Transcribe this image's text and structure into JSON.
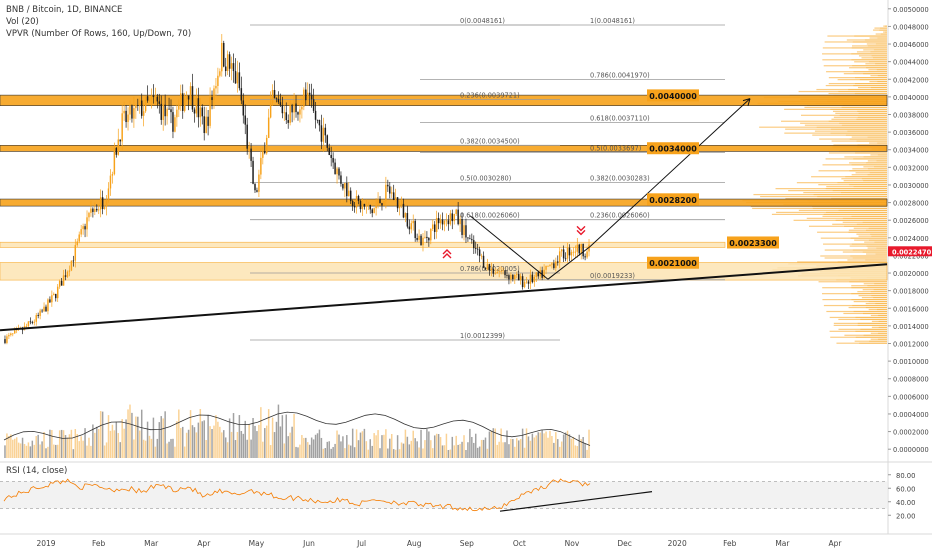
{
  "header": {
    "symbol_line": "BNB / Bitcoin, 1D, BINANCE",
    "vol_line": "Vol (20)",
    "vpvr_line": "VPVR (Number Of Rows, 160, Up/Down, 70)",
    "rsi_line": "RSI (14, close)"
  },
  "colors": {
    "up": "#f7a21b",
    "down": "#1e1e1e",
    "zone": "#f7a21b",
    "zone_light": "#fde4b3",
    "price_tag": "#e8192c",
    "rsi_line": "#f57c00"
  },
  "chart_data": {
    "type": "candlestick",
    "price_axis": {
      "ylim": [
        -0.0001,
        0.0051
      ],
      "ticks": [
        "0.0050000",
        "0.0048000",
        "0.0046000",
        "0.0044000",
        "0.0042000",
        "0.0040000",
        "0.0038000",
        "0.0036000",
        "0.0034000",
        "0.0032000",
        "0.0030000",
        "0.0028000",
        "0.0026000",
        "0.0024000",
        "0.0022000",
        "0.0020000",
        "0.0018000",
        "0.0016000",
        "0.0014000",
        "0.0012000",
        "0.0010000",
        "0.0008000",
        "0.0006000",
        "0.0004000",
        "0.0002000",
        "0.0000000"
      ],
      "current_price": "0.0022470"
    },
    "rsi_axis": {
      "ylim": [
        10,
        90
      ],
      "ticks": [
        "80.00",
        "60.00",
        "40.00",
        "20.00"
      ],
      "band": [
        30,
        70
      ]
    },
    "time_axis": {
      "labels": [
        "2019",
        "Feb",
        "Mar",
        "Apr",
        "May",
        "Jun",
        "Jul",
        "Aug",
        "Sep",
        "Oct",
        "Nov",
        "Dec",
        "2020",
        "Feb",
        "Mar",
        "Apr"
      ]
    },
    "close_path": [
      [
        "2019",
        0.00125
      ],
      [
        "Jan",
        0.00135
      ],
      [
        "Jan",
        0.0015
      ],
      [
        "Feb",
        0.00175
      ],
      [
        "Feb",
        0.00215
      ],
      [
        "Feb",
        0.00265
      ],
      [
        "Feb",
        0.00285
      ],
      [
        "Mar",
        0.0037
      ],
      [
        "Mar",
        0.00385
      ],
      [
        "Mar",
        0.00395
      ],
      [
        "Apr",
        0.0037
      ],
      [
        "Apr",
        0.0041
      ],
      [
        "Apr",
        0.00365
      ],
      [
        "May",
        0.0045
      ],
      [
        "May",
        0.00415
      ],
      [
        "May",
        0.00285
      ],
      [
        "May",
        0.00395
      ],
      [
        "Jun",
        0.0038
      ],
      [
        "Jun",
        0.004
      ],
      [
        "Jun",
        0.0036
      ],
      [
        "Jul",
        0.0031
      ],
      [
        "Jul",
        0.0028
      ],
      [
        "Jul",
        0.0027
      ],
      [
        "Jul",
        0.00295
      ],
      [
        "Aug",
        0.00265
      ],
      [
        "Aug",
        0.00235
      ],
      [
        "Aug",
        0.0026
      ],
      [
        "Aug",
        0.00265
      ],
      [
        "Sep",
        0.0023
      ],
      [
        "Sep",
        0.00205
      ],
      [
        "Sep",
        0.002
      ],
      [
        "Sep",
        0.0019
      ],
      [
        "Oct",
        0.00195
      ],
      [
        "Oct",
        0.00215
      ],
      [
        "Oct",
        0.00228
      ],
      [
        "Oct",
        0.00225
      ]
    ],
    "fib_left": {
      "levels": [
        {
          "label": "0(0.0048161)",
          "value": 0.0048161
        },
        {
          "label": "0.236(0.0039721)",
          "value": 0.0039721
        },
        {
          "label": "0.382(0.0034500)",
          "value": 0.00345
        },
        {
          "label": "0.5(0.0030280)",
          "value": 0.003028
        },
        {
          "label": "0.618(0.0026060)",
          "value": 0.002606
        },
        {
          "label": "0.786(0.0020005)",
          "value": 0.0020005
        },
        {
          "label": "1(0.0012399)",
          "value": 0.0012399
        }
      ]
    },
    "fib_right": {
      "levels": [
        {
          "label": "1(0.0048161)",
          "value": 0.0048161
        },
        {
          "label": "0.786(0.0041970)",
          "value": 0.004197
        },
        {
          "label": "0.618(0.0037110)",
          "value": 0.003711
        },
        {
          "label": "0.5(0.0033697)",
          "value": 0.0033697
        },
        {
          "label": "0.382(0.0030283)",
          "value": 0.0030283
        },
        {
          "label": "0.236(0.0026060)",
          "value": 0.002606
        },
        {
          "label": "0(0.0019233)",
          "value": 0.0019233
        }
      ]
    },
    "zones": [
      {
        "low": 0.0039,
        "high": 0.00402
      },
      {
        "low": 0.00338,
        "high": 0.00345
      },
      {
        "low": 0.00276,
        "high": 0.00284
      },
      {
        "low": 0.00192,
        "high": 0.00212,
        "light": true
      },
      {
        "low": 0.00229,
        "high": 0.00235,
        "light": true
      }
    ],
    "levels": [
      {
        "label": "0.0040000",
        "value": 0.004
      },
      {
        "label": "0.0034000",
        "value": 0.0034
      },
      {
        "label": "0.0028200",
        "value": 0.00282
      },
      {
        "label": "0.0023300",
        "value": 0.00233
      },
      {
        "label": "0.0021000",
        "value": 0.0021
      }
    ],
    "rsi_path": [
      45,
      52,
      60,
      66,
      72,
      62,
      64,
      58,
      60,
      54,
      66,
      58,
      62,
      47,
      55,
      50,
      57,
      52,
      45,
      46,
      42,
      40,
      43,
      36,
      44,
      40,
      38,
      36,
      33,
      32,
      30,
      28,
      30,
      42,
      55,
      62,
      73,
      68,
      66
    ]
  }
}
